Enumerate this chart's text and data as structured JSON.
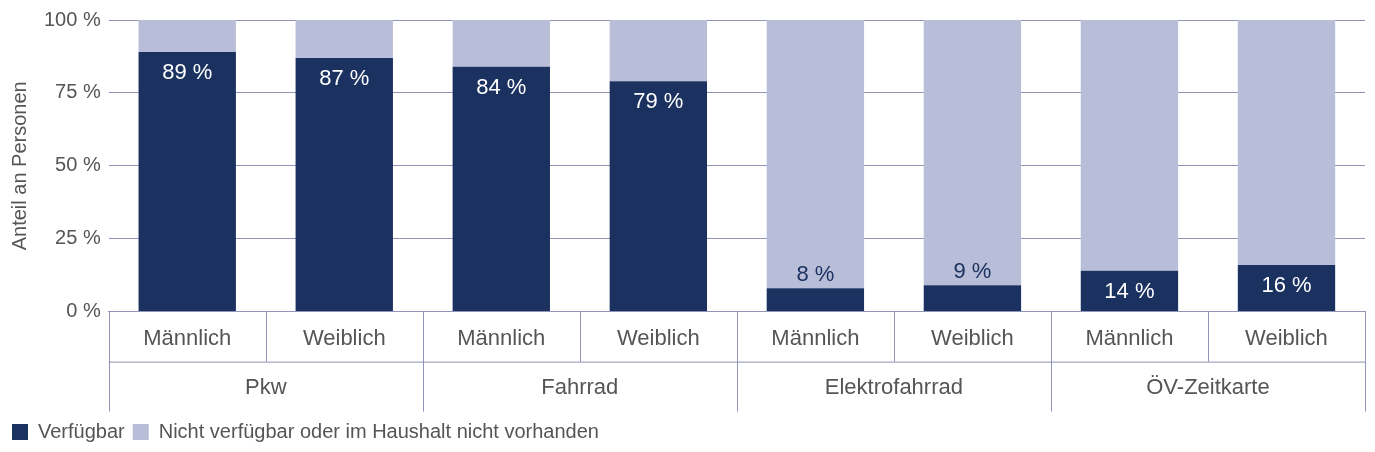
{
  "chart_data": {
    "type": "bar",
    "stacked": true,
    "ylabel": "Anteil an Personen",
    "categories": [
      "Männlich",
      "Weiblich",
      "Männlich",
      "Weiblich",
      "Männlich",
      "Weiblich",
      "Männlich",
      "Weiblich"
    ],
    "annotations": [
      "Pkw",
      "Fahrrad",
      "Elektrofahrrad",
      "ÖV-Zeitkarte"
    ],
    "series": [
      {
        "name": "Verfügbar",
        "color": "#1b3160",
        "values": [
          89,
          87,
          84,
          79,
          8,
          9,
          14,
          16
        ],
        "value_labels": [
          "89 %",
          "87 %",
          "84 %",
          "79 %",
          "8 %",
          "9 %",
          "14 %",
          "16 %"
        ]
      },
      {
        "name": "Nicht verfügbar oder im Haushalt nicht vorhanden",
        "color": "#b8bdd8",
        "values": [
          11,
          13,
          16,
          21,
          92,
          91,
          86,
          84
        ]
      }
    ],
    "ylim": [
      0,
      100
    ],
    "yticks": [
      {
        "value": 0,
        "label": "0 %"
      },
      {
        "value": 25,
        "label": "25 %"
      },
      {
        "value": 50,
        "label": "50 %"
      },
      {
        "value": 75,
        "label": "75 %"
      },
      {
        "value": 100,
        "label": "100 %"
      }
    ],
    "grid": "y",
    "legend": "bottom left"
  }
}
